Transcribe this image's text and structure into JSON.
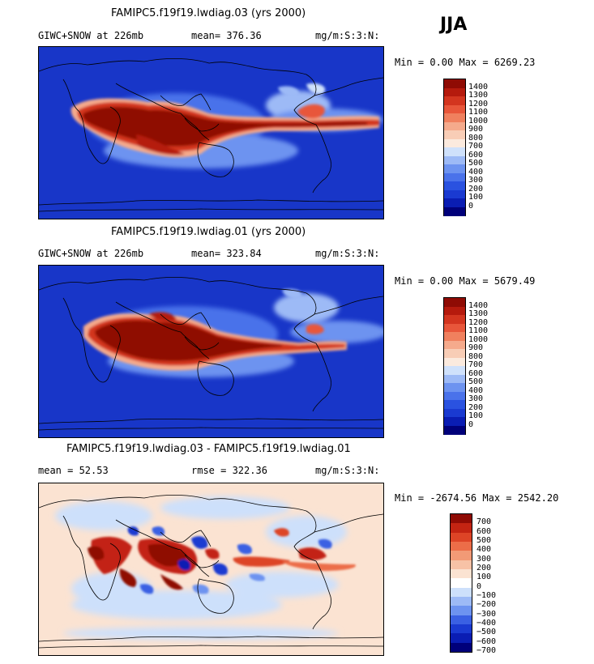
{
  "season": "JJA",
  "colors": {
    "abs": [
      "#00007a",
      "#0a1db3",
      "#1a3ad1",
      "#2a52e0",
      "#4a72ea",
      "#6d93f0",
      "#9dbaf6",
      "#cfe1fb",
      "#fbeade",
      "#f8cdb6",
      "#f5aa8c",
      "#f0805e",
      "#e8563a",
      "#d3351f",
      "#b51a0d",
      "#8f0b04"
    ],
    "diff": [
      "#00007a",
      "#0a1db3",
      "#1a3ad1",
      "#3a60e3",
      "#6d93f0",
      "#9dbaf6",
      "#cde0fb",
      "#ffffff",
      "#fbe3d2",
      "#f7c2a6",
      "#f29a76",
      "#ec6d48",
      "#dd4426",
      "#c32412",
      "#8f0b04"
    ]
  },
  "panels": [
    {
      "title": "FAMIPC5.f19f19.lwdiag.03 (yrs 2000)",
      "left_label": "GIWC+SNOW at 226mb",
      "mid_label": "mean= 376.36",
      "units": "mg/m:S:3:N:",
      "minmax": "Min =   0.00 Max = 6269.23",
      "colorbar": "abs",
      "levels": [
        "1400",
        "1300",
        "1200",
        "1100",
        "1000",
        "900",
        "800",
        "700",
        "600",
        "500",
        "400",
        "300",
        "200",
        "100",
        "0"
      ]
    },
    {
      "title": "FAMIPC5.f19f19.lwdiag.01 (yrs 2000)",
      "left_label": "GIWC+SNOW at 226mb",
      "mid_label": "mean= 323.84",
      "units": "mg/m:S:3:N:",
      "minmax": "Min =   0.00 Max = 5679.49",
      "colorbar": "abs",
      "levels": [
        "1400",
        "1300",
        "1200",
        "1100",
        "1000",
        "900",
        "800",
        "700",
        "600",
        "500",
        "400",
        "300",
        "200",
        "100",
        "0"
      ]
    },
    {
      "title": "FAMIPC5.f19f19.lwdiag.03 - FAMIPC5.f19f19.lwdiag.01",
      "left_label": "mean =  52.53",
      "mid_label": "rmse = 322.36",
      "units": "mg/m:S:3:N:",
      "minmax": "Min = -2674.56 Max = 2542.20",
      "colorbar": "diff",
      "levels": [
        "700",
        "600",
        "500",
        "400",
        "300",
        "200",
        "100",
        "0",
        "−100",
        "−200",
        "−300",
        "−400",
        "−500",
        "−600",
        "−700"
      ]
    }
  ],
  "chart_data": [
    {
      "type": "heatmap",
      "title": "FAMIPC5.f19f19.lwdiag.03 (yrs 2000)",
      "variable": "GIWC+SNOW at 226mb",
      "units": "mg/m:S:3:N:",
      "mean": 376.36,
      "min": 0.0,
      "max": 6269.23,
      "levels": [
        0,
        100,
        200,
        300,
        400,
        500,
        600,
        700,
        800,
        900,
        1000,
        1100,
        1200,
        1300,
        1400
      ]
    },
    {
      "type": "heatmap",
      "title": "FAMIPC5.f19f19.lwdiag.01 (yrs 2000)",
      "variable": "GIWC+SNOW at 226mb",
      "units": "mg/m:S:3:N:",
      "mean": 323.84,
      "min": 0.0,
      "max": 5679.49,
      "levels": [
        0,
        100,
        200,
        300,
        400,
        500,
        600,
        700,
        800,
        900,
        1000,
        1100,
        1200,
        1300,
        1400
      ]
    },
    {
      "type": "heatmap",
      "title": "FAMIPC5.f19f19.lwdiag.03 - FAMIPC5.f19f19.lwdiag.01",
      "units": "mg/m:S:3:N:",
      "mean": 52.53,
      "rmse": 322.36,
      "min": -2674.56,
      "max": 2542.2,
      "levels": [
        -700,
        -600,
        -500,
        -400,
        -300,
        -200,
        -100,
        0,
        100,
        200,
        300,
        400,
        500,
        600,
        700
      ]
    }
  ]
}
